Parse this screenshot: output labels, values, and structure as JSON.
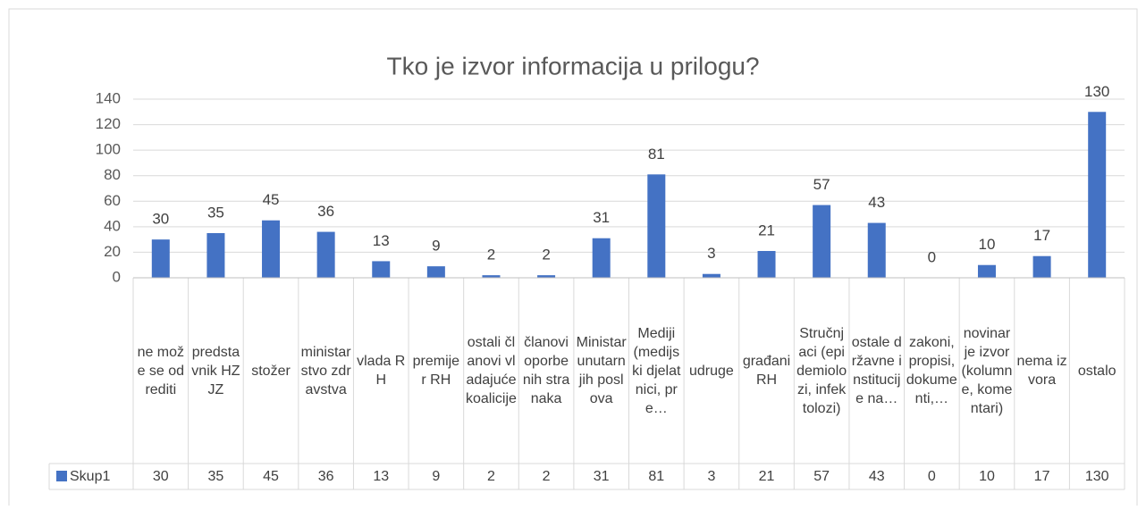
{
  "chart_data": {
    "type": "bar",
    "title": "Tko je izvor informacija u prilogu?",
    "categories": [
      "ne može se odrediti",
      "predstavnik HZJZ",
      "stožer",
      "ministarstvo zdravstva",
      "vlada RH",
      "premijer RH",
      "ostali članovi vladajuće koalicije",
      "članovi oporbenih stranaka",
      "Ministar unutarnjih poslova",
      "Mediji (medijski djelatnici, pre…",
      "udruge",
      "građani RH",
      "Stručnjaci (epidemiolozi, infektolozi)",
      "ostale državne institucije na…",
      "zakoni, propisi, dokumenti,…",
      "novinar je izvor (kolumne, komentari)",
      "nema izvora",
      "ostalo"
    ],
    "series": [
      {
        "name": "Skup1",
        "color": "#4472c4",
        "values": [
          30,
          35,
          45,
          36,
          13,
          9,
          2,
          2,
          31,
          81,
          3,
          21,
          57,
          43,
          0,
          10,
          17,
          130
        ]
      }
    ],
    "ylim": [
      0,
      140
    ],
    "yticks": [
      0,
      20,
      40,
      60,
      80,
      100,
      120,
      140
    ],
    "grid": true
  }
}
